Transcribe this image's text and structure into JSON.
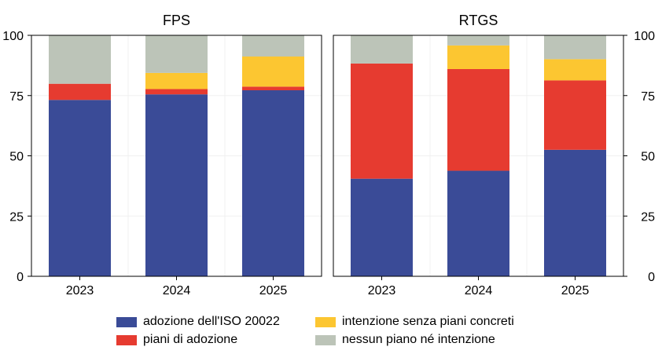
{
  "chart_data": [
    {
      "type": "bar",
      "stacked": true,
      "title": "FPS",
      "categories": [
        "2023",
        "2024",
        "2025"
      ],
      "ylim": [
        0,
        100
      ],
      "yticks": [
        "0",
        "25",
        "50",
        "75",
        "100"
      ],
      "y_axis_side": "left",
      "series": [
        {
          "name": "adozione dell'ISO 20022",
          "values": [
            73.2,
            75.5,
            77.2
          ]
        },
        {
          "name": "piani di adozione",
          "values": [
            6.7,
            2.2,
            1.5
          ]
        },
        {
          "name": "intenzione senza piani concreti",
          "values": [
            0,
            6.7,
            12.5
          ]
        },
        {
          "name": "nessun piano né intenzione",
          "values": [
            20.1,
            15.6,
            8.8
          ]
        }
      ]
    },
    {
      "type": "bar",
      "stacked": true,
      "title": "RTGS",
      "categories": [
        "2023",
        "2024",
        "2025"
      ],
      "ylim": [
        0,
        100
      ],
      "yticks": [
        "0",
        "25",
        "50",
        "75",
        "100"
      ],
      "y_axis_side": "right",
      "series": [
        {
          "name": "adozione dell'ISO 20022",
          "values": [
            40.5,
            43.8,
            52.5
          ]
        },
        {
          "name": "piani di adozione",
          "values": [
            47.8,
            42.2,
            28.8
          ]
        },
        {
          "name": "intenzione senza piani concreti",
          "values": [
            0,
            9.8,
            8.8
          ]
        },
        {
          "name": "nessun piano né intenzione",
          "values": [
            11.7,
            4.2,
            9.9
          ]
        }
      ]
    }
  ],
  "colors": [
    "#3a4b97",
    "#e63b30",
    "#fcc631",
    "#bcc4b8"
  ],
  "legend": {
    "placement": "bottom",
    "items": [
      {
        "label": "adozione dell'ISO 20022",
        "color": "#3a4b97"
      },
      {
        "label": "piani di adozione",
        "color": "#e63b30"
      },
      {
        "label": "intenzione senza piani concreti",
        "color": "#fcc631"
      },
      {
        "label": "nessun piano né intenzione",
        "color": "#bcc4b8"
      }
    ]
  }
}
